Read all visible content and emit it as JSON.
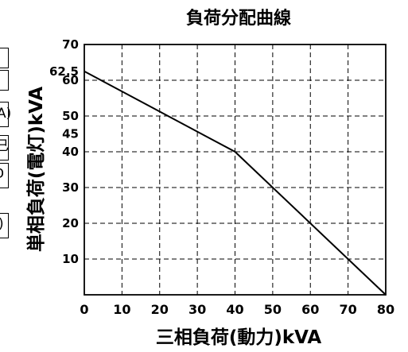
{
  "chart_data": {
    "type": "line",
    "title": "負荷分配曲線",
    "xlabel": "三相負荷(動力)kVA",
    "ylabel": "単相負荷(電灯)kVA",
    "xlim": [
      0,
      80
    ],
    "ylim": [
      0,
      70
    ],
    "x_ticks": [
      0,
      10,
      20,
      30,
      40,
      50,
      60,
      70,
      80
    ],
    "y_ticks": [
      10,
      20,
      30,
      40,
      45,
      50,
      60,
      62.5,
      70
    ],
    "grid": true,
    "grid_style": "dashed",
    "series": [
      {
        "x": [
          0,
          40,
          80
        ],
        "y": [
          62.5,
          40,
          0
        ],
        "color": "#000000"
      }
    ]
  },
  "edge_fragments": [
    ")",
    "A)",
    "已",
    "D",
    ")"
  ]
}
